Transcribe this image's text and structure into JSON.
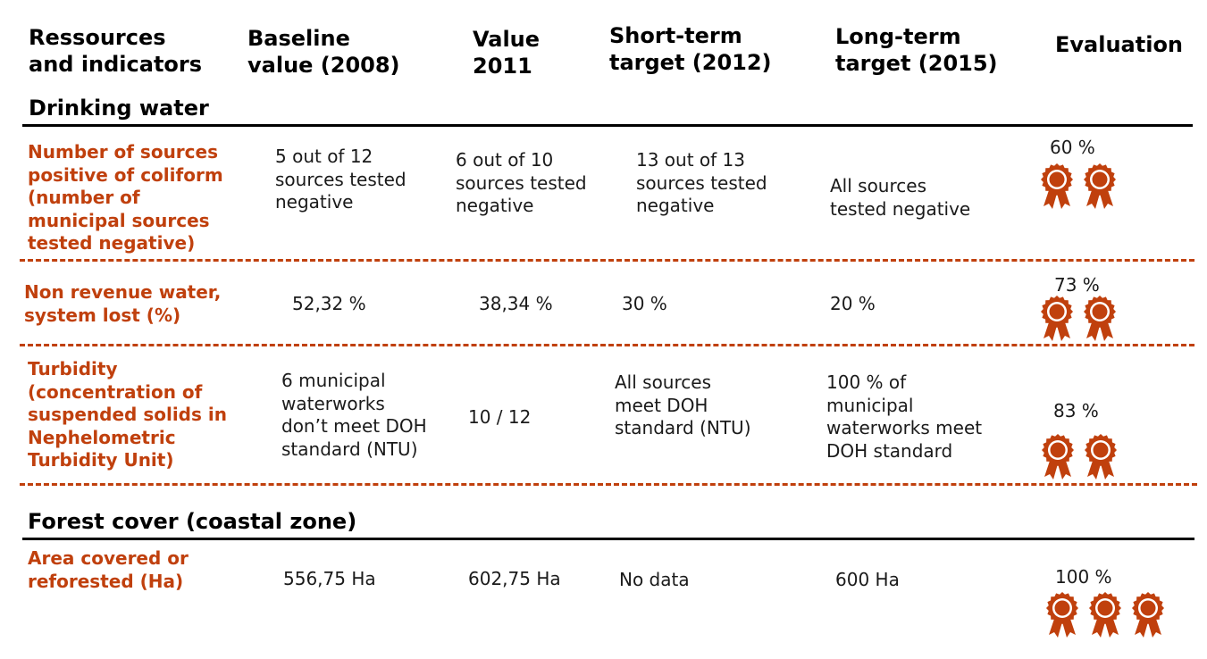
{
  "header": {
    "col1": "Ressources\nand indicators",
    "col2": "Baseline\nvalue (2008)",
    "col3": "Value\n2011",
    "col4": "Short-term\ntarget (2012)",
    "col5": "Long-term\ntarget (2015)",
    "col6": "Evaluation"
  },
  "sections": {
    "drinking_water": "Drinking water",
    "forest_cover": "Forest cover (coastal zone)"
  },
  "rows": [
    {
      "indicator": "Number of sources\npositive of coliform\n(number of\nmunicipal sources\ntested negative)",
      "baseline": "5 out of 12\nsources tested\nnegative",
      "value_2011": "6 out of 10\nsources tested\nnegative",
      "short_term": "13 out of 13\nsources tested\nnegative",
      "long_term": "All sources\ntested negative",
      "evaluation": "60 %",
      "award_count": 2
    },
    {
      "indicator": "Non revenue water,\nsystem lost (%)",
      "baseline": "52,32 %",
      "value_2011": "38,34 %",
      "short_term": "30 %",
      "long_term": "20 %",
      "evaluation": "73 %",
      "award_count": 2
    },
    {
      "indicator": "Turbidity\n(concentration of\nsuspended solids in\nNephelometric\nTurbidity Unit)",
      "baseline": "6 municipal\nwaterworks\ndon’t meet DOH\nstandard (NTU)",
      "value_2011": "10 / 12",
      "short_term": "All sources\nmeet DOH\nstandard (NTU)",
      "long_term": "100 % of\nmunicipal\nwaterworks meet\nDOH standard",
      "evaluation": "83 %",
      "award_count": 2
    },
    {
      "indicator": "Area covered or\nreforested (Ha)",
      "baseline": "556,75 Ha",
      "value_2011": "602,75 Ha",
      "short_term": "No data",
      "long_term": "600 Ha",
      "evaluation": "100 %",
      "award_count": 3
    }
  ],
  "colors": {
    "accent": "#c0400d",
    "rule": "#000000",
    "text": "#1a1a1a"
  },
  "icons": {
    "award": "award-rosette-icon"
  }
}
